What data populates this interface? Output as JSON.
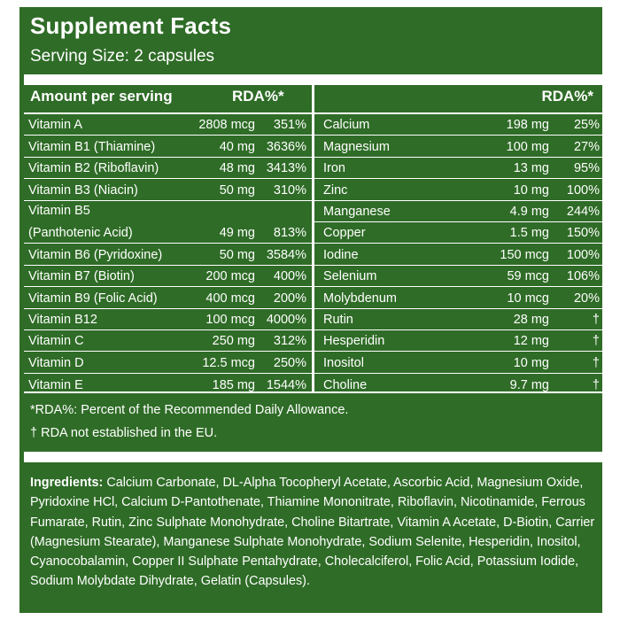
{
  "title": "Supplement Facts",
  "serving_size": "Serving Size: 2 capsules",
  "header": {
    "amount_per_serving": "Amount per serving",
    "rda_left": "RDA%*",
    "rda_right": "RDA%*"
  },
  "left_rows": [
    {
      "name": "Vitamin A",
      "amount": "2808 mcg",
      "rda": "351%"
    },
    {
      "name": "Vitamin B1 (Thiamine)",
      "amount": "40 mg",
      "rda": "3636%"
    },
    {
      "name": "Vitamin B2 (Riboflavin)",
      "amount": "48 mg",
      "rda": "3413%"
    },
    {
      "name": "Vitamin B3 (Niacin)",
      "amount": "50 mg",
      "rda": "310%"
    },
    {
      "name": "Vitamin B5",
      "name2": "(Panthotenic Acid)",
      "amount": "49 mg",
      "rda": "813%"
    },
    {
      "name": "Vitamin B6 (Pyridoxine)",
      "amount": "50 mg",
      "rda": "3584%"
    },
    {
      "name": "Vitamin B7 (Biotin)",
      "amount": "200 mcg",
      "rda": "400%"
    },
    {
      "name": "Vitamin B9 (Folic Acid)",
      "amount": "400 mcg",
      "rda": "200%"
    },
    {
      "name": "Vitamin B12",
      "amount": "100 mcg",
      "rda": "4000%"
    },
    {
      "name": "Vitamin C",
      "amount": "250 mg",
      "rda": "312%"
    },
    {
      "name": "Vitamin D",
      "amount": "12.5 mcg",
      "rda": "250%"
    },
    {
      "name": "Vitamin E",
      "amount": "185 mg",
      "rda": "1544%"
    }
  ],
  "right_rows": [
    {
      "name": "Calcium",
      "amount": "198 mg",
      "rda": "25%"
    },
    {
      "name": "Magnesium",
      "amount": "100 mg",
      "rda": "27%"
    },
    {
      "name": "Iron",
      "amount": "13 mg",
      "rda": "95%"
    },
    {
      "name": "Zinc",
      "amount": "10 mg",
      "rda": "100%"
    },
    {
      "name": "Manganese",
      "amount": "4.9 mg",
      "rda": "244%"
    },
    {
      "name": "Copper",
      "amount": "1.5 mg",
      "rda": "150%"
    },
    {
      "name": "Iodine",
      "amount": "150 mcg",
      "rda": "100%"
    },
    {
      "name": "Selenium",
      "amount": "59 mcg",
      "rda": "106%"
    },
    {
      "name": "Molybdenum",
      "amount": "10 mcg",
      "rda": "20%"
    },
    {
      "name": "Rutin",
      "amount": "28 mg",
      "rda": "†"
    },
    {
      "name": "Hesperidin",
      "amount": "12 mg",
      "rda": "†"
    },
    {
      "name": "Inositol",
      "amount": "10 mg",
      "rda": "†"
    },
    {
      "name": "Choline",
      "amount": "9.7 mg",
      "rda": "†"
    }
  ],
  "footnotes": {
    "rda_definition": "*RDA%: Percent of the Recommended Daily Allowance.",
    "dagger": "† RDA not established in the EU."
  },
  "ingredients": {
    "label": "Ingredients:",
    "text": " Calcium Carbonate, DL-Alpha Tocopheryl Acetate, Ascorbic Acid, Magnesium Oxide, Pyridoxine HCl, Calcium D-Pantothenate, Thiamine Mononitrate, Riboflavin, Nicotinamide, Ferrous Fumarate, Rutin, Zinc Sulphate Monohydrate, Choline Bitartrate, Vitamin A Acetate, D-Biotin, Carrier (Magnesium Stearate), Manganese Sulphate Monohydrate, Sodium Selenite, Hesperidin, Inositol, Cyanocobalamin, Copper II Sulphate Pentahydrate, Cholecalciferol, Folic Acid, Potassium Iodide, Sodium Molybdate Dihydrate, Gelatin (Capsules)."
  },
  "colors": {
    "panel_green": "#2f6c27",
    "text_white": "#ffffff"
  }
}
